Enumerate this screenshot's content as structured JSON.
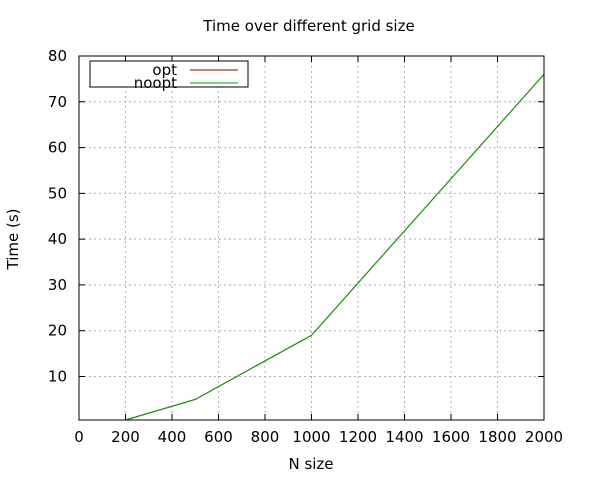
{
  "chart_data": {
    "type": "line",
    "title": "Time over different grid size",
    "xlabel": "N size",
    "ylabel": "Time (s)",
    "xlim": [
      0,
      2000
    ],
    "ylim": [
      0.5,
      80
    ],
    "x_ticks": [
      0,
      200,
      400,
      600,
      800,
      1000,
      1200,
      1400,
      1600,
      1800,
      2000
    ],
    "y_ticks": [
      10,
      20,
      30,
      40,
      50,
      60,
      70,
      80
    ],
    "grid": true,
    "legend_position": "top-left",
    "series": [
      {
        "name": "opt",
        "color": "#8b0000",
        "points": [
          [
            200,
            0.5
          ],
          [
            500,
            5.0
          ],
          [
            1000,
            19.0
          ],
          [
            2000,
            76.0
          ]
        ]
      },
      {
        "name": "noopt",
        "color": "#00a000",
        "points": [
          [
            200,
            0.5
          ],
          [
            500,
            5.0
          ],
          [
            1000,
            19.0
          ],
          [
            2000,
            76.0
          ]
        ]
      }
    ]
  }
}
